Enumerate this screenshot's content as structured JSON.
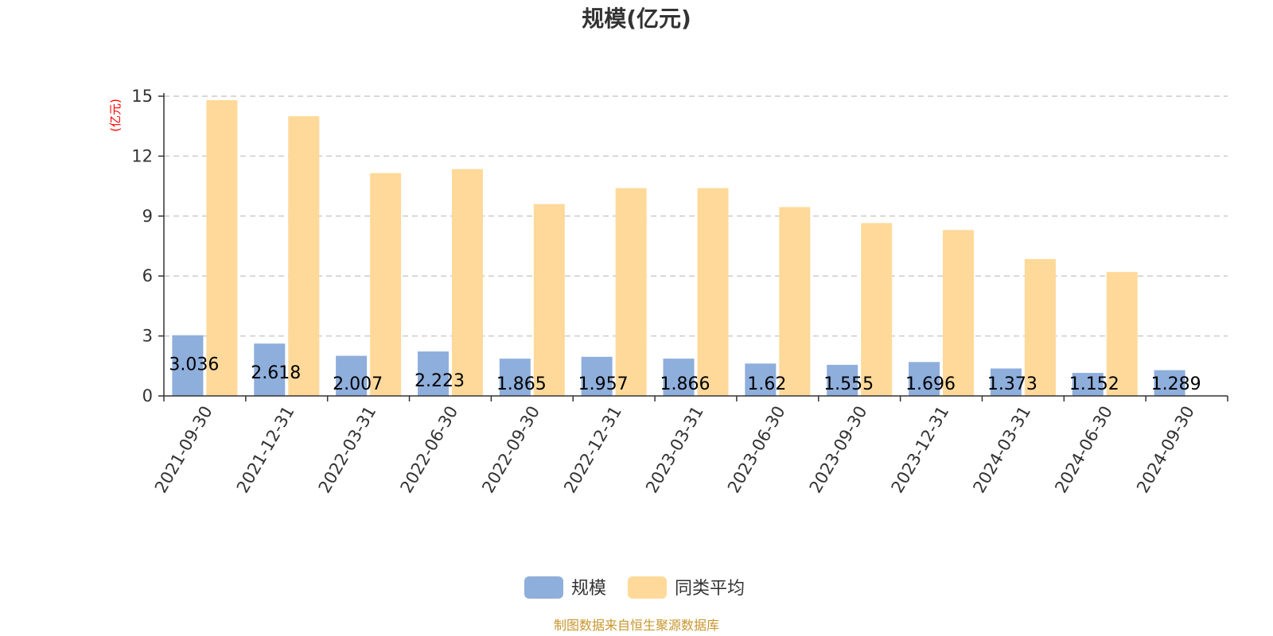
{
  "chart_data": {
    "type": "bar",
    "title": "规模(亿元)",
    "ylabel": "(亿元)",
    "xlabel": "",
    "ylim": [
      0,
      15
    ],
    "yticks": [
      0,
      3,
      6,
      9,
      12,
      15
    ],
    "grid": true,
    "legend_position": "bottom",
    "categories": [
      "2021-09-30",
      "2021-12-31",
      "2022-03-31",
      "2022-06-30",
      "2022-09-30",
      "2022-12-31",
      "2023-03-31",
      "2023-06-30",
      "2023-09-30",
      "2023-12-31",
      "2024-03-31",
      "2024-06-30",
      "2024-09-30"
    ],
    "series": [
      {
        "name": "规模",
        "color": "#8eaedc",
        "values": [
          3.036,
          2.618,
          2.007,
          2.223,
          1.865,
          1.957,
          1.866,
          1.62,
          1.555,
          1.696,
          1.373,
          1.152,
          1.289
        ],
        "labels": [
          "3.036",
          "2.618",
          "2.007",
          "2.223",
          "1.865",
          "1.957",
          "1.866",
          "1.62",
          "1.555",
          "1.696",
          "1.373",
          "1.152",
          "1.289"
        ]
      },
      {
        "name": "同类平均",
        "color": "#ffd999",
        "values": [
          14.8,
          14.0,
          11.15,
          11.35,
          9.6,
          10.4,
          10.4,
          9.45,
          8.65,
          8.3,
          6.85,
          6.2,
          null
        ]
      }
    ]
  },
  "source": "制图数据来自恒生聚源数据库"
}
